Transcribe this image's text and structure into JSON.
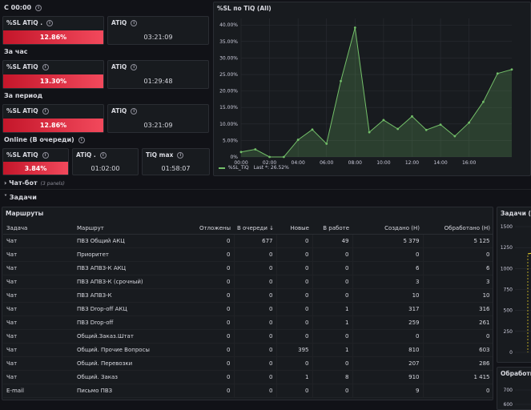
{
  "online_block": {
    "title": "С 00:00",
    "cards": [
      {
        "label": "%SL ATiQ .",
        "value": "12.86%",
        "style": "red"
      },
      {
        "label": "ATiQ",
        "value": "03:21:09",
        "style": "plain"
      }
    ]
  },
  "hour_block": {
    "title": "За час",
    "cards": [
      {
        "label": "%SL ATiQ",
        "value": "13.30%",
        "style": "red"
      },
      {
        "label": "ATiQ",
        "value": "01:29:48",
        "style": "plain"
      }
    ]
  },
  "period_block": {
    "title": "За период",
    "cards": [
      {
        "label": "%SL ATiQ",
        "value": "12.86%",
        "style": "red"
      },
      {
        "label": "ATiQ",
        "value": "03:21:09",
        "style": "plain"
      }
    ]
  },
  "queue_block": {
    "title": "Online (В очереди)",
    "cards": [
      {
        "label": "%SL ATiQ",
        "value": "3.84%",
        "style": "red"
      },
      {
        "label": "ATiQ .",
        "value": "01:02:00",
        "style": "plain"
      },
      {
        "label": "TiQ max",
        "value": "01:58:07",
        "style": "plain"
      }
    ]
  },
  "chart_panel": {
    "title": "%SL по TiQ (All)",
    "legend_series": "%SL_TiQ",
    "legend_last": "Last *: 26.52%"
  },
  "chart_data": {
    "type": "area",
    "x": [
      "00:00",
      "01:00",
      "02:00",
      "03:00",
      "04:00",
      "05:00",
      "06:00",
      "07:00",
      "08:00",
      "09:00",
      "10:00",
      "11:00",
      "12:00",
      "13:00",
      "14:00",
      "15:00",
      "16:00",
      "17:00",
      "18:00",
      "18:30"
    ],
    "yticks": [
      "0%",
      "5.00%",
      "10.00%",
      "15.00%",
      "20.00%",
      "25.00%",
      "30.00%",
      "35.00%",
      "40.00%"
    ],
    "xticks": [
      "00:00",
      "02:00",
      "04:00",
      "06:00",
      "08:00",
      "10:00",
      "12:00",
      "14:00",
      "16:00"
    ],
    "series": [
      {
        "name": "%SL_TiQ",
        "values": [
          1.5,
          2.3,
          0.0,
          0.0,
          5.2,
          8.3,
          4.0,
          23.0,
          39.2,
          7.5,
          11.2,
          8.5,
          12.3,
          8.2,
          9.8,
          6.3,
          10.4,
          16.7,
          25.3,
          26.52
        ]
      }
    ],
    "ylim": [
      0,
      42
    ],
    "color": "#73bf69"
  },
  "chat_row": {
    "title": "Чат-бот",
    "sub": "(3 panels)"
  },
  "tasks_row": {
    "title": "Задачи"
  },
  "routes_table": {
    "title": "Маршруты",
    "headers": [
      "Задача",
      "Маршрут",
      "Отложены",
      "В очереди ↓",
      "Новые",
      "В работе",
      "Создано (Н)",
      "Обработано (Н)"
    ],
    "rows": [
      [
        "Чат",
        "ПВЗ Общий АКЦ",
        "0",
        "677",
        "0",
        "49",
        "5 379",
        "5 125"
      ],
      [
        "Чат",
        "Приоритет",
        "0",
        "0",
        "0",
        "0",
        "0",
        "0"
      ],
      [
        "Чат",
        "ПВЗ АПВЗ-К АКЦ",
        "0",
        "0",
        "0",
        "0",
        "6",
        "6"
      ],
      [
        "Чат",
        "ПВЗ АПВЗ-К (срочный)",
        "0",
        "0",
        "0",
        "0",
        "3",
        "3"
      ],
      [
        "Чат",
        "ПВЗ АПВЗ-К",
        "0",
        "0",
        "0",
        "0",
        "10",
        "10"
      ],
      [
        "Чат",
        "ПВЗ Drop-off АКЦ",
        "0",
        "0",
        "0",
        "1",
        "317",
        "316"
      ],
      [
        "Чат",
        "ПВЗ Drop-off",
        "0",
        "0",
        "0",
        "1",
        "259",
        "261"
      ],
      [
        "Чат",
        "Общий.Заказ.Штат",
        "0",
        "0",
        "0",
        "0",
        "0",
        "0"
      ],
      [
        "Чат",
        "Общий. Прочие Вопросы",
        "0",
        "0",
        "395",
        "1",
        "810",
        "603"
      ],
      [
        "Чат",
        "Общий. Перевозки",
        "0",
        "0",
        "0",
        "0",
        "207",
        "286"
      ],
      [
        "Чат",
        "Общий. Заказ",
        "0",
        "0",
        "1",
        "8",
        "910",
        "1 415"
      ],
      [
        "E-mail",
        "Письмо ПВЗ",
        "0",
        "0",
        "0",
        "0",
        "9",
        "0"
      ]
    ]
  },
  "tasks_chart": {
    "title": "Задачи (All)",
    "yticks": [
      "0",
      "250",
      "500",
      "750",
      "1000",
      "1250",
      "1500"
    ]
  },
  "processing_chart": {
    "title": "Обработка",
    "yticks": [
      "700",
      "600"
    ]
  }
}
